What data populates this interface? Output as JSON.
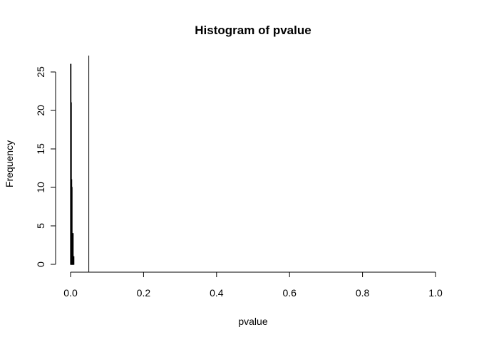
{
  "chart_data": {
    "type": "bar",
    "title": "Histogram of pvalue",
    "xlabel": "pvalue",
    "ylabel": "Frequency",
    "xlim": [
      0,
      1
    ],
    "ylim": [
      0,
      26
    ],
    "x_ticks": [
      "0.0",
      "0.2",
      "0.4",
      "0.6",
      "0.8",
      "1.0"
    ],
    "y_ticks": [
      "0",
      "5",
      "10",
      "15",
      "20",
      "25"
    ],
    "bin_width": 0.001,
    "bins": [
      {
        "x0": 0.0,
        "x1": 0.001,
        "count": 26
      },
      {
        "x0": 0.001,
        "x1": 0.002,
        "count": 21
      },
      {
        "x0": 0.002,
        "x1": 0.003,
        "count": 11
      },
      {
        "x0": 0.003,
        "x1": 0.004,
        "count": 10
      },
      {
        "x0": 0.004,
        "x1": 0.005,
        "count": 4
      },
      {
        "x0": 0.005,
        "x1": 0.006,
        "count": 3
      },
      {
        "x0": 0.006,
        "x1": 0.007,
        "count": 4
      },
      {
        "x0": 0.007,
        "x1": 0.008,
        "count": 1
      },
      {
        "x0": 0.008,
        "x1": 0.009,
        "count": 1
      }
    ],
    "reference_line": {
      "x": 0.05
    },
    "grid": false,
    "bar_color": "#000000"
  }
}
